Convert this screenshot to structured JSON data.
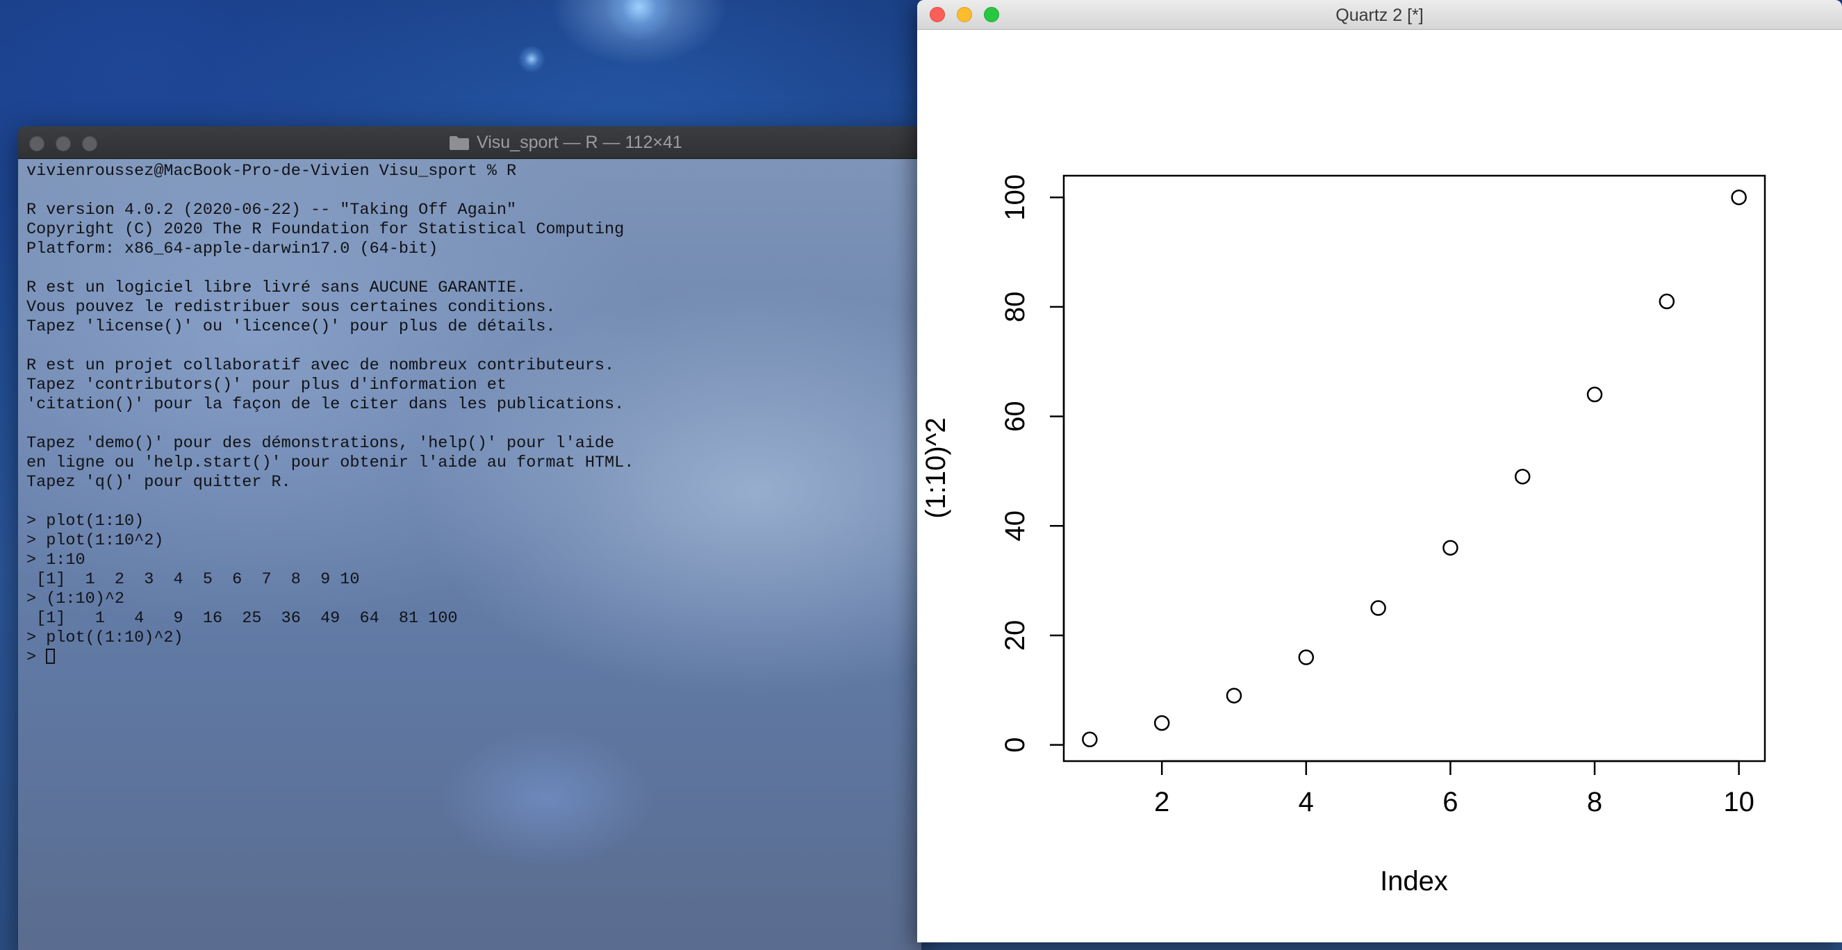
{
  "terminal": {
    "title": "Visu_sport — R — 112×41",
    "lines": [
      "vivienroussez@MacBook-Pro-de-Vivien Visu_sport % R",
      "",
      "R version 4.0.2 (2020-06-22) -- \"Taking Off Again\"",
      "Copyright (C) 2020 The R Foundation for Statistical Computing",
      "Platform: x86_64-apple-darwin17.0 (64-bit)",
      "",
      "R est un logiciel libre livré sans AUCUNE GARANTIE.",
      "Vous pouvez le redistribuer sous certaines conditions.",
      "Tapez 'license()' ou 'licence()' pour plus de détails.",
      "",
      "R est un projet collaboratif avec de nombreux contributeurs.",
      "Tapez 'contributors()' pour plus d'information et",
      "'citation()' pour la façon de le citer dans les publications.",
      "",
      "Tapez 'demo()' pour des démonstrations, 'help()' pour l'aide",
      "en ligne ou 'help.start()' pour obtenir l'aide au format HTML.",
      "Tapez 'q()' pour quitter R.",
      "",
      "> plot(1:10)",
      "> plot(1:10^2)",
      "> 1:10",
      " [1]  1  2  3  4  5  6  7  8  9 10",
      "> (1:10)^2",
      " [1]   1   4   9  16  25  36  49  64  81 100",
      "> plot((1:10)^2)"
    ],
    "prompt": "> "
  },
  "quartz": {
    "title": "Quartz 2 [*]"
  },
  "chart_data": {
    "type": "scatter",
    "x": [
      1,
      2,
      3,
      4,
      5,
      6,
      7,
      8,
      9,
      10
    ],
    "y": [
      1,
      4,
      9,
      16,
      25,
      36,
      49,
      64,
      81,
      100
    ],
    "xlabel": "Index",
    "ylabel": "(1:10)^2",
    "xticks": [
      "2",
      "4",
      "6",
      "8",
      "10"
    ],
    "yticks": [
      "0",
      "20",
      "40",
      "60",
      "80",
      "100"
    ],
    "xlim": [
      0.64,
      10.36
    ],
    "ylim": [
      -2.96,
      103.96
    ],
    "marker": "open-circle",
    "grid": false
  }
}
